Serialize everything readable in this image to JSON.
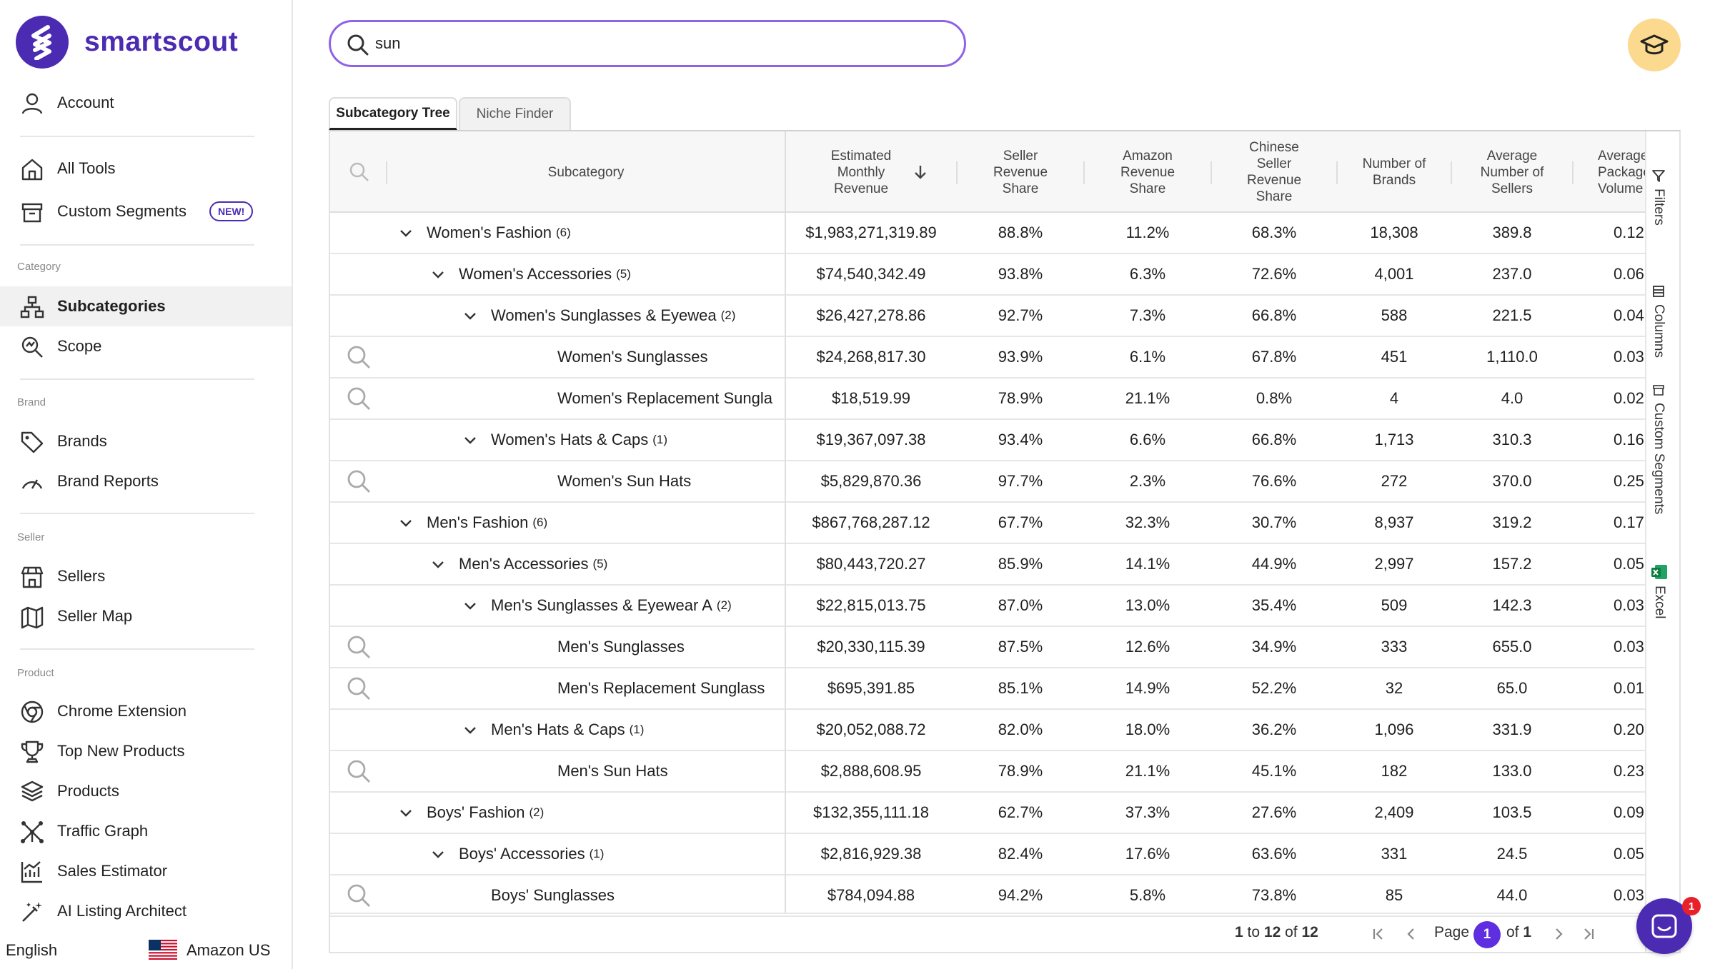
{
  "brand": {
    "name": "smartscout"
  },
  "nav": {
    "account": "Account",
    "all_tools": "All Tools",
    "custom_segments": "Custom Segments",
    "new_badge": "NEW!",
    "sec_category": "Category",
    "subcategories": "Subcategories",
    "scope": "Scope",
    "sec_brand": "Brand",
    "brands": "Brands",
    "brand_reports": "Brand Reports",
    "sec_seller": "Seller",
    "sellers": "Sellers",
    "seller_map": "Seller Map",
    "sec_product": "Product",
    "chrome_extension": "Chrome Extension",
    "top_new_products": "Top New Products",
    "products": "Products",
    "traffic_graph": "Traffic Graph",
    "sales_estimator": "Sales Estimator",
    "ai_listing_architect": "AI Listing Architect"
  },
  "footer": {
    "language": "English",
    "marketplace": "Amazon US"
  },
  "search": {
    "value": "sun"
  },
  "tabs": {
    "subcategory_tree": "Subcategory Tree",
    "niche_finder": "Niche Finder"
  },
  "columns": {
    "subcategory": "Subcategory",
    "revenue": "Estimated Monthly Revenue",
    "seller_share": "Seller Revenue Share",
    "amazon_share": "Amazon Revenue Share",
    "chinese_share": "Chinese Seller Revenue Share",
    "brands": "Number of Brands",
    "sellers": "Average Number of Sellers",
    "package": "Average Package Volume"
  },
  "side_tools": {
    "filters": "Filters",
    "columns": "Columns",
    "custom_segments": "Custom Segments",
    "excel": "Excel"
  },
  "rows": [
    {
      "level": 0,
      "name": "Women's Fashion",
      "count": "(6)",
      "revenue": "$1,983,271,319.89",
      "seller": "88.8%",
      "amazon": "11.2%",
      "chinese": "68.3%",
      "brands": "18,308",
      "sellers": "389.8",
      "pkg": "0.12"
    },
    {
      "level": 1,
      "name": "Women's Accessories",
      "count": "(5)",
      "revenue": "$74,540,342.49",
      "seller": "93.8%",
      "amazon": "6.3%",
      "chinese": "72.6%",
      "brands": "4,001",
      "sellers": "237.0",
      "pkg": "0.06"
    },
    {
      "level": 2,
      "name": "Women's Sunglasses & Eyewea",
      "count": "(2)",
      "revenue": "$26,427,278.86",
      "seller": "92.7%",
      "amazon": "7.3%",
      "chinese": "66.8%",
      "brands": "588",
      "sellers": "221.5",
      "pkg": "0.04"
    },
    {
      "level": 3,
      "name": "Women's Sunglasses",
      "count": "",
      "revenue": "$24,268,817.30",
      "seller": "93.9%",
      "amazon": "6.1%",
      "chinese": "67.8%",
      "brands": "451",
      "sellers": "1,110.0",
      "pkg": "0.03"
    },
    {
      "level": 3,
      "name": "Women's Replacement Sungla",
      "count": "",
      "revenue": "$18,519.99",
      "seller": "78.9%",
      "amazon": "21.1%",
      "chinese": "0.8%",
      "brands": "4",
      "sellers": "4.0",
      "pkg": "0.02"
    },
    {
      "level": 2,
      "name": "Women's Hats & Caps",
      "count": "(1)",
      "revenue": "$19,367,097.38",
      "seller": "93.4%",
      "amazon": "6.6%",
      "chinese": "66.8%",
      "brands": "1,713",
      "sellers": "310.3",
      "pkg": "0.16"
    },
    {
      "level": 3,
      "name": "Women's Sun Hats",
      "count": "",
      "revenue": "$5,829,870.36",
      "seller": "97.7%",
      "amazon": "2.3%",
      "chinese": "76.6%",
      "brands": "272",
      "sellers": "370.0",
      "pkg": "0.25"
    },
    {
      "level": 0,
      "name": "Men's Fashion",
      "count": "(6)",
      "revenue": "$867,768,287.12",
      "seller": "67.7%",
      "amazon": "32.3%",
      "chinese": "30.7%",
      "brands": "8,937",
      "sellers": "319.2",
      "pkg": "0.17"
    },
    {
      "level": 1,
      "name": "Men's Accessories",
      "count": "(5)",
      "revenue": "$80,443,720.27",
      "seller": "85.9%",
      "amazon": "14.1%",
      "chinese": "44.9%",
      "brands": "2,997",
      "sellers": "157.2",
      "pkg": "0.05"
    },
    {
      "level": 2,
      "name": "Men's Sunglasses & Eyewear A",
      "count": "(2)",
      "revenue": "$22,815,013.75",
      "seller": "87.0%",
      "amazon": "13.0%",
      "chinese": "35.4%",
      "brands": "509",
      "sellers": "142.3",
      "pkg": "0.03"
    },
    {
      "level": 3,
      "name": "Men's Sunglasses",
      "count": "",
      "revenue": "$20,330,115.39",
      "seller": "87.5%",
      "amazon": "12.6%",
      "chinese": "34.9%",
      "brands": "333",
      "sellers": "655.0",
      "pkg": "0.03"
    },
    {
      "level": 3,
      "name": "Men's Replacement Sunglass",
      "count": "",
      "revenue": "$695,391.85",
      "seller": "85.1%",
      "amazon": "14.9%",
      "chinese": "52.2%",
      "brands": "32",
      "sellers": "65.0",
      "pkg": "0.01"
    },
    {
      "level": 2,
      "name": "Men's Hats & Caps",
      "count": "(1)",
      "revenue": "$20,052,088.72",
      "seller": "82.0%",
      "amazon": "18.0%",
      "chinese": "36.2%",
      "brands": "1,096",
      "sellers": "331.9",
      "pkg": "0.20"
    },
    {
      "level": 3,
      "name": "Men's Sun Hats",
      "count": "",
      "revenue": "$2,888,608.95",
      "seller": "78.9%",
      "amazon": "21.1%",
      "chinese": "45.1%",
      "brands": "182",
      "sellers": "133.0",
      "pkg": "0.23"
    },
    {
      "level": 0,
      "name": "Boys' Fashion",
      "count": "(2)",
      "revenue": "$132,355,111.18",
      "seller": "62.7%",
      "amazon": "37.3%",
      "chinese": "27.6%",
      "brands": "2,409",
      "sellers": "103.5",
      "pkg": "0.09"
    },
    {
      "level": 1,
      "name": "Boys' Accessories",
      "count": "(1)",
      "revenue": "$2,816,929.38",
      "seller": "82.4%",
      "amazon": "17.6%",
      "chinese": "63.6%",
      "brands": "331",
      "sellers": "24.5",
      "pkg": "0.05"
    },
    {
      "level": 2,
      "name": "Boys' Sunglasses",
      "count": "",
      "leaf": true,
      "revenue": "$784,094.88",
      "seller": "94.2%",
      "amazon": "5.8%",
      "chinese": "73.8%",
      "brands": "85",
      "sellers": "44.0",
      "pkg": "0.03"
    }
  ],
  "pager": {
    "from": "1",
    "to_label": "to",
    "to": "12",
    "of_label": "of",
    "total": "12",
    "page_label": "Page",
    "page": "1",
    "pages_of": "of",
    "pages": "1"
  },
  "chat": {
    "badge": "1"
  }
}
